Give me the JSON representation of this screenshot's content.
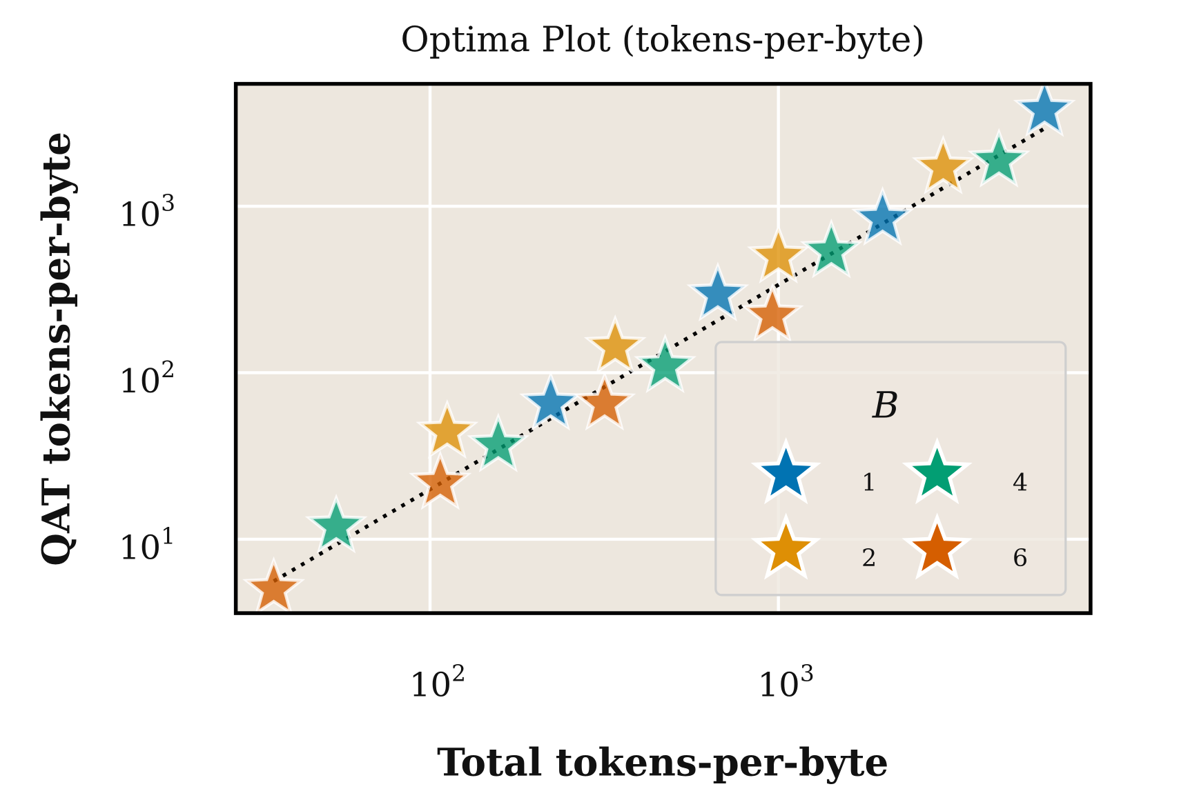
{
  "chart_data": {
    "type": "scatter",
    "title": "Optima Plot (tokens-per-byte)",
    "xlabel": "Total tokens-per-byte",
    "ylabel": "QAT tokens-per-byte",
    "xscale": "log",
    "yscale": "log",
    "xlim": [
      27.7,
      7870
    ],
    "ylim": [
      3.6,
      5430
    ],
    "grid": true,
    "background": "#ede7de",
    "xticks": [
      {
        "base": "10",
        "exp": "2",
        "value": 100
      },
      {
        "base": "10",
        "exp": "3",
        "value": 1000
      }
    ],
    "yticks": [
      {
        "base": "10",
        "exp": "1",
        "value": 10
      },
      {
        "base": "10",
        "exp": "2",
        "value": 100
      },
      {
        "base": "10",
        "exp": "3",
        "value": 1000
      }
    ],
    "legend": {
      "title": "B",
      "placement": "lower-right",
      "entries": [
        {
          "label": "1",
          "color": "#0173b2"
        },
        {
          "label": "4",
          "color": "#029e73"
        },
        {
          "label": "2",
          "color": "#de8f05"
        },
        {
          "label": "6",
          "color": "#d55e00"
        }
      ]
    },
    "series": [
      {
        "name": "1",
        "color": "#0173b2",
        "points": [
          [
            222,
            65
          ],
          [
            670,
            294
          ],
          [
            1991,
            837
          ],
          [
            5806,
            3770
          ]
        ]
      },
      {
        "name": "2",
        "color": "#de8f05",
        "points": [
          [
            112,
            44
          ],
          [
            340,
            142
          ],
          [
            1000,
            497
          ],
          [
            2972,
            1703
          ]
        ]
      },
      {
        "name": "4",
        "color": "#029e73",
        "points": [
          [
            53.8,
            11.9
          ],
          [
            157,
            36.5
          ],
          [
            473,
            109
          ],
          [
            1419,
            534
          ],
          [
            4295,
            1870
          ]
        ]
      },
      {
        "name": "6",
        "color": "#d55e00",
        "points": [
          [
            35.6,
            5.0
          ],
          [
            107,
            21.7
          ],
          [
            317,
            65
          ],
          [
            961,
            220
          ]
        ]
      }
    ],
    "fit_line": {
      "style": "dotted",
      "color": "#000000",
      "points": [
        [
          35.6,
          5.6
        ],
        [
          5806,
          2930
        ]
      ]
    }
  }
}
